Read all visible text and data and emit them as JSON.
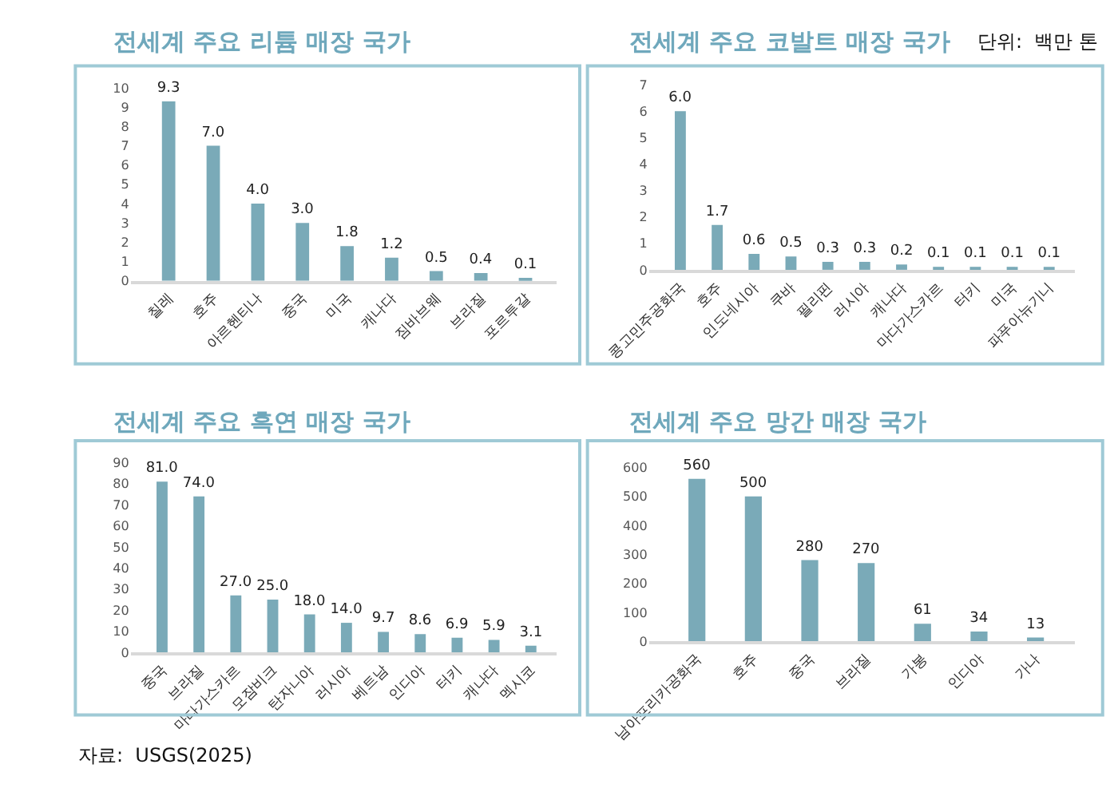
{
  "chart_data": [
    {
      "type": "bar",
      "title": "전세계 주요 리튬 매장 국가",
      "categories": [
        "칠레",
        "호주",
        "아르헨티나",
        "중국",
        "미국",
        "캐나다",
        "짐바브웨",
        "브라질",
        "포르투갈"
      ],
      "values": [
        9.3,
        7.0,
        4.0,
        3.0,
        1.8,
        1.2,
        0.5,
        0.4,
        0.1
      ],
      "value_labels": [
        "9.3",
        "7.0",
        "4.0",
        "3.0",
        "1.8",
        "1.2",
        "0.5",
        "0.4",
        "0.1"
      ],
      "color": "#7aaab8",
      "ylim": [
        0,
        10
      ],
      "yticks": [
        0,
        1,
        2,
        3,
        4,
        5,
        6,
        7,
        8,
        9,
        10
      ]
    },
    {
      "type": "bar",
      "title": "전세계 주요 코발트 매장 국가",
      "categories": [
        "콩고민주공화국",
        "호주",
        "인도네시아",
        "쿠바",
        "필리핀",
        "러시아",
        "캐나다",
        "마다가스카르",
        "터키",
        "미국",
        "파푸아뉴기니"
      ],
      "values": [
        6.0,
        1.7,
        0.6,
        0.5,
        0.3,
        0.3,
        0.2,
        0.1,
        0.1,
        0.1,
        0.1
      ],
      "value_labels": [
        "6.0",
        "1.7",
        "0.6",
        "0.5",
        "0.3",
        "0.3",
        "0.2",
        "0.1",
        "0.1",
        "0.1",
        "0.1"
      ],
      "color": "#7aaab8",
      "ylim": [
        0,
        7
      ],
      "yticks": [
        0,
        1,
        2,
        3,
        4,
        5,
        6,
        7
      ],
      "annotations": [
        "단위:  백만 톤"
      ]
    },
    {
      "type": "bar",
      "title": "전세계 주요 흑연 매장 국가",
      "categories": [
        "중국",
        "브라질",
        "마다가스카르",
        "모잠비크",
        "탄자니아",
        "러시아",
        "베트남",
        "인디아",
        "터키",
        "캐나다",
        "멕시코"
      ],
      "values": [
        81.0,
        74.0,
        27.0,
        25.0,
        18.0,
        14.0,
        9.7,
        8.6,
        6.9,
        5.9,
        3.1
      ],
      "value_labels": [
        "81.0",
        "74.0",
        "27.0",
        "25.0",
        "18.0",
        "14.0",
        "9.7",
        "8.6",
        "6.9",
        "5.9",
        "3.1"
      ],
      "color": "#7aaab8",
      "ylim": [
        0,
        90
      ],
      "yticks": [
        0,
        10,
        20,
        30,
        40,
        50,
        60,
        70,
        80,
        90
      ],
      "annotations": [
        "자료:  USGS(2025)"
      ]
    },
    {
      "type": "bar",
      "title": "전세계 주요 망간 매장 국가",
      "categories": [
        "남아프리카공화국",
        "호주",
        "중국",
        "브라질",
        "가봉",
        "인디아",
        "가나"
      ],
      "values": [
        560,
        500,
        280,
        270,
        61,
        34,
        13
      ],
      "value_labels": [
        "560",
        "500",
        "280",
        "270",
        "61",
        "34",
        "13"
      ],
      "color": "#7aaab8",
      "ylim": [
        0,
        600
      ],
      "yticks": [
        0,
        100,
        200,
        300,
        400,
        500,
        600
      ]
    }
  ]
}
